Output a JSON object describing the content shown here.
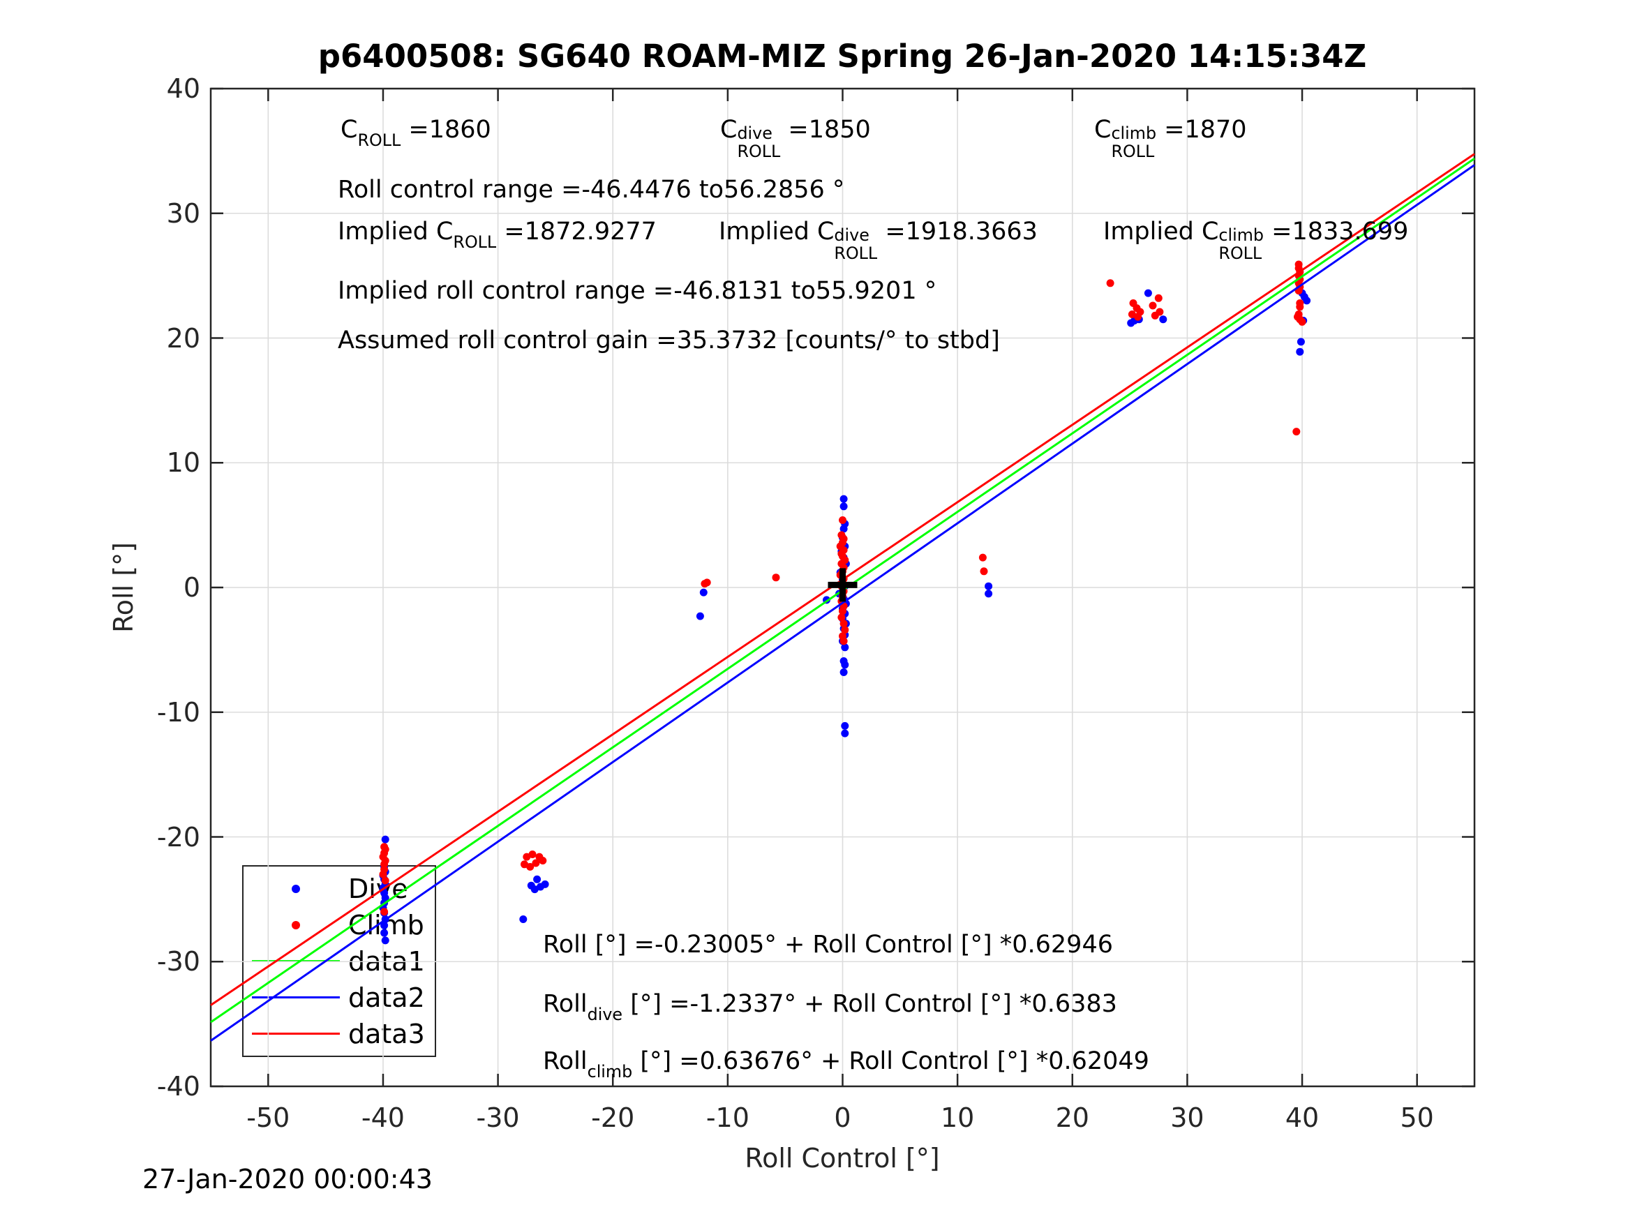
{
  "title": "p6400508: SG640 ROAM-MIZ Spring 26-Jan-2020 14:15:34Z",
  "timestamp": "27-Jan-2020 00:00:43",
  "axes": {
    "xlabel": "Roll Control [°]",
    "ylabel": "Roll [°]"
  },
  "colors": {
    "dive": "#0000ff",
    "climb": "#ff0000",
    "data1": "#00ff00",
    "data2": "#0000ff",
    "data3": "#ff0000",
    "grid": "#dcdcdc",
    "axis": "#262626",
    "origin_marker": "#000000"
  },
  "legend": {
    "items": [
      {
        "label": "Dive",
        "marker": "dot",
        "color": "#0000ff"
      },
      {
        "label": "Climb",
        "marker": "dot",
        "color": "#ff0000"
      },
      {
        "label": "data1",
        "marker": "line",
        "color": "#00ff00"
      },
      {
        "label": "data2",
        "marker": "line",
        "color": "#0000ff"
      },
      {
        "label": "data3",
        "marker": "line",
        "color": "#ff0000"
      }
    ]
  },
  "chart_data": {
    "type": "scatter",
    "title": "p6400508: SG640 ROAM-MIZ Spring 26-Jan-2020 14:15:34Z",
    "xlabel": "Roll Control [°]",
    "ylabel": "Roll [°]",
    "xlim": [
      -55,
      55
    ],
    "ylim": [
      -40,
      40
    ],
    "x_ticks": [
      -50,
      -40,
      -30,
      -20,
      -10,
      0,
      10,
      20,
      30,
      40,
      50
    ],
    "y_ticks": [
      -40,
      -30,
      -20,
      -10,
      0,
      10,
      20,
      30,
      40
    ],
    "grid": true,
    "legend_position": "lower-left",
    "origin_marker": {
      "x": 0,
      "y": 0.2
    },
    "series": [
      {
        "name": "Dive",
        "type": "scatter",
        "color": "#0000ff",
        "points": [
          [
            0.1,
            7.1
          ],
          [
            0.1,
            6.5
          ],
          [
            0.2,
            5.1
          ],
          [
            0.1,
            4.7
          ],
          [
            0.0,
            4.0
          ],
          [
            0.2,
            3.3
          ],
          [
            -0.1,
            2.9
          ],
          [
            0.1,
            2.4
          ],
          [
            0.3,
            1.9
          ],
          [
            -0.2,
            1.2
          ],
          [
            0.0,
            0.6
          ],
          [
            0.2,
            0.1
          ],
          [
            -0.3,
            -0.5
          ],
          [
            0.1,
            -0.9
          ],
          [
            0.3,
            -1.3
          ],
          [
            -1.4,
            -1.0
          ],
          [
            0.0,
            -1.7
          ],
          [
            0.2,
            -2.1
          ],
          [
            0.0,
            -2.5
          ],
          [
            0.3,
            -2.9
          ],
          [
            0.1,
            -3.3
          ],
          [
            0.2,
            -3.8
          ],
          [
            0.0,
            -4.3
          ],
          [
            0.2,
            -4.8
          ],
          [
            0.1,
            -5.9
          ],
          [
            0.2,
            -6.2
          ],
          [
            0.1,
            -6.8
          ],
          [
            0.2,
            -11.1
          ],
          [
            0.2,
            -11.7
          ],
          [
            -39.8,
            -20.2
          ],
          [
            -39.9,
            -22.4
          ],
          [
            -39.8,
            -22.8
          ],
          [
            -40.0,
            -23.1
          ],
          [
            -39.9,
            -23.4
          ],
          [
            -39.8,
            -23.8
          ],
          [
            -40.0,
            -24.1
          ],
          [
            -39.9,
            -24.5
          ],
          [
            -39.8,
            -24.9
          ],
          [
            -39.9,
            -25.3
          ],
          [
            -40.0,
            -25.7
          ],
          [
            -39.9,
            -26.1
          ],
          [
            -39.8,
            -26.6
          ],
          [
            -39.9,
            -27.1
          ],
          [
            -39.9,
            -27.7
          ],
          [
            -39.8,
            -28.3
          ],
          [
            -26.6,
            -23.4
          ],
          [
            -27.1,
            -23.9
          ],
          [
            -26.8,
            -24.2
          ],
          [
            -26.3,
            -24.0
          ],
          [
            -25.9,
            -23.8
          ],
          [
            -27.8,
            -26.6
          ],
          [
            -12.1,
            -0.4
          ],
          [
            -12.4,
            -2.3
          ],
          [
            12.7,
            0.1
          ],
          [
            12.7,
            -0.5
          ],
          [
            26.6,
            23.6
          ],
          [
            25.1,
            21.2
          ],
          [
            25.4,
            21.4
          ],
          [
            25.8,
            21.5
          ],
          [
            27.9,
            21.5
          ],
          [
            40.0,
            23.6
          ],
          [
            40.2,
            23.3
          ],
          [
            40.4,
            23.0
          ],
          [
            40.1,
            21.4
          ],
          [
            39.9,
            19.7
          ],
          [
            39.8,
            18.9
          ]
        ]
      },
      {
        "name": "Climb",
        "type": "scatter",
        "color": "#ff0000",
        "points": [
          [
            0.0,
            5.4
          ],
          [
            -0.1,
            4.2
          ],
          [
            0.1,
            3.9
          ],
          [
            0.0,
            3.6
          ],
          [
            -0.2,
            3.3
          ],
          [
            0.1,
            3.0
          ],
          [
            -0.1,
            2.7
          ],
          [
            0.0,
            2.5
          ],
          [
            0.2,
            2.2
          ],
          [
            -0.1,
            1.9
          ],
          [
            0.1,
            1.6
          ],
          [
            0.0,
            1.3
          ],
          [
            -0.2,
            1.0
          ],
          [
            0.1,
            0.7
          ],
          [
            0.0,
            0.4
          ],
          [
            -0.1,
            0.1
          ],
          [
            0.1,
            -0.3
          ],
          [
            0.0,
            -0.7
          ],
          [
            -0.1,
            -1.1
          ],
          [
            0.1,
            -1.5
          ],
          [
            0.0,
            -1.9
          ],
          [
            -0.1,
            -2.4
          ],
          [
            0.1,
            -2.9
          ],
          [
            0.2,
            -3.4
          ],
          [
            0.0,
            -3.9
          ],
          [
            0.1,
            -4.3
          ],
          [
            -39.9,
            -20.8
          ],
          [
            -39.8,
            -21.0
          ],
          [
            -39.9,
            -21.3
          ],
          [
            -40.0,
            -21.6
          ],
          [
            -39.8,
            -21.9
          ],
          [
            -39.9,
            -22.2
          ],
          [
            -39.9,
            -22.6
          ],
          [
            -40.0,
            -23.0
          ],
          [
            -39.8,
            -23.5
          ],
          [
            -39.9,
            -26.0
          ],
          [
            -27.5,
            -21.6
          ],
          [
            -27.0,
            -21.4
          ],
          [
            -26.4,
            -21.6
          ],
          [
            -27.7,
            -22.2
          ],
          [
            -27.2,
            -22.4
          ],
          [
            -26.7,
            -22.1
          ],
          [
            -26.1,
            -21.9
          ],
          [
            -12.0,
            0.3
          ],
          [
            -11.8,
            0.4
          ],
          [
            -5.8,
            0.8
          ],
          [
            12.2,
            2.4
          ],
          [
            12.3,
            1.3
          ],
          [
            23.3,
            24.4
          ],
          [
            25.3,
            22.8
          ],
          [
            25.6,
            22.4
          ],
          [
            25.9,
            22.1
          ],
          [
            25.2,
            21.9
          ],
          [
            25.7,
            21.7
          ],
          [
            27.0,
            22.6
          ],
          [
            27.5,
            23.2
          ],
          [
            27.6,
            22.1
          ],
          [
            27.2,
            21.8
          ],
          [
            39.7,
            25.9
          ],
          [
            39.7,
            25.6
          ],
          [
            39.8,
            25.3
          ],
          [
            39.7,
            25.0
          ],
          [
            39.8,
            24.7
          ],
          [
            39.7,
            24.4
          ],
          [
            39.8,
            24.1
          ],
          [
            39.7,
            23.8
          ],
          [
            39.8,
            22.8
          ],
          [
            39.8,
            22.5
          ],
          [
            39.7,
            21.9
          ],
          [
            39.6,
            21.7
          ],
          [
            39.8,
            21.5
          ],
          [
            40.0,
            21.3
          ],
          [
            39.5,
            12.5
          ]
        ]
      },
      {
        "name": "data1",
        "type": "line",
        "color": "#00ff00",
        "intercept": -0.23005,
        "slope": 0.62946
      },
      {
        "name": "data2",
        "type": "line",
        "color": "#0000ff",
        "intercept": -1.2337,
        "slope": 0.6383
      },
      {
        "name": "data3",
        "type": "line",
        "color": "#ff0000",
        "intercept": 0.63676,
        "slope": 0.62049
      }
    ],
    "annotations": [
      {
        "x": 488,
        "y": 166,
        "segments": [
          {
            "text": "C"
          },
          {
            "sub": "ROLL"
          },
          {
            "text": " =1860"
          }
        ]
      },
      {
        "x": 1032,
        "y": 166,
        "segments": [
          {
            "text": "C"
          },
          {
            "sup": "dive",
            "sub": "ROLL"
          },
          {
            "text": " =1850"
          }
        ]
      },
      {
        "x": 1568,
        "y": 166,
        "segments": [
          {
            "text": "C"
          },
          {
            "sup": "climb",
            "sub": "ROLL"
          },
          {
            "text": " =1870"
          }
        ]
      },
      {
        "x": 484,
        "y": 252,
        "segments": [
          {
            "text": "Roll control range =-46.4476 to56.2856 °"
          }
        ]
      },
      {
        "x": 484,
        "y": 312,
        "segments": [
          {
            "text": "Implied C"
          },
          {
            "sub": "ROLL"
          },
          {
            "text": " =1872.9277"
          }
        ]
      },
      {
        "x": 1030,
        "y": 312,
        "segments": [
          {
            "text": "Implied C"
          },
          {
            "sup": "dive",
            "sub": "ROLL"
          },
          {
            "text": " =1918.3663"
          }
        ]
      },
      {
        "x": 1581,
        "y": 312,
        "segments": [
          {
            "text": "Implied C"
          },
          {
            "sup": "climb",
            "sub": "ROLL"
          },
          {
            "text": " =1833.699"
          }
        ]
      },
      {
        "x": 484,
        "y": 397,
        "segments": [
          {
            "text": "Implied roll control range =-46.8131 to55.9201 °"
          }
        ]
      },
      {
        "x": 484,
        "y": 468,
        "segments": [
          {
            "text": "Assumed roll control gain =35.3732 [counts/° to stbd]"
          }
        ]
      },
      {
        "x": 778,
        "y": 1334,
        "segments": [
          {
            "text": "Roll [°] =-0.23005° + Roll Control [°] *0.62946"
          }
        ]
      },
      {
        "x": 778,
        "y": 1419,
        "segments": [
          {
            "text": "Roll"
          },
          {
            "sub": "dive"
          },
          {
            "text": " [°] =-1.2337° + Roll Control [°] *0.6383"
          }
        ]
      },
      {
        "x": 778,
        "y": 1501,
        "segments": [
          {
            "text": "Roll"
          },
          {
            "sub": "climb"
          },
          {
            "text": " [°] =0.63676° + Roll Control [°] *0.62049"
          }
        ]
      }
    ]
  }
}
